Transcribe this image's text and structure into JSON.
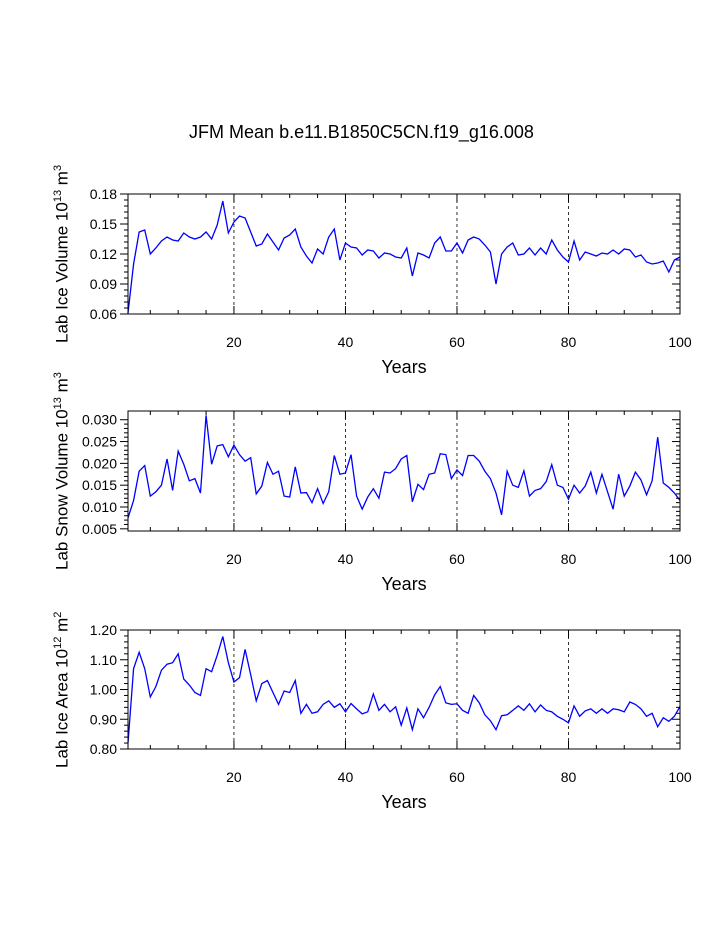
{
  "title": "JFM Mean b.e11.B1850C5CN.f19_g16.008",
  "chart_data": [
    {
      "type": "line",
      "title": "JFM Mean b.e11.B1850C5CN.f19_g16.008",
      "ylabel": {
        "text": "Lab Ice Volume 10",
        "exp": "13",
        "unit": " m",
        "unit_exp": "3"
      },
      "xlabel": "Years",
      "xlim": [
        1,
        100
      ],
      "ylim": [
        0.06,
        0.18
      ],
      "xticks": [
        20,
        40,
        60,
        80,
        100
      ],
      "yticks": [
        0.06,
        0.09,
        0.12,
        0.15,
        0.18
      ],
      "ytick_labels": [
        "0.06",
        "0.09",
        "0.12",
        "0.15",
        "0.18"
      ],
      "grid": "vertical dashed at x ticks",
      "color": "#0000ff",
      "values": [
        0.061,
        0.11,
        0.142,
        0.144,
        0.12,
        0.126,
        0.133,
        0.137,
        0.134,
        0.133,
        0.141,
        0.137,
        0.135,
        0.137,
        0.142,
        0.135,
        0.149,
        0.173,
        0.141,
        0.152,
        0.158,
        0.156,
        0.142,
        0.128,
        0.13,
        0.14,
        0.132,
        0.124,
        0.136,
        0.139,
        0.145,
        0.127,
        0.118,
        0.111,
        0.125,
        0.12,
        0.137,
        0.145,
        0.114,
        0.131,
        0.127,
        0.126,
        0.119,
        0.124,
        0.123,
        0.116,
        0.121,
        0.12,
        0.117,
        0.116,
        0.126,
        0.098,
        0.121,
        0.119,
        0.116,
        0.131,
        0.137,
        0.123,
        0.123,
        0.131,
        0.121,
        0.134,
        0.137,
        0.135,
        0.129,
        0.122,
        0.09,
        0.12,
        0.127,
        0.131,
        0.119,
        0.12,
        0.126,
        0.119,
        0.126,
        0.12,
        0.134,
        0.124,
        0.117,
        0.112,
        0.133,
        0.114,
        0.122,
        0.12,
        0.118,
        0.121,
        0.12,
        0.124,
        0.12,
        0.125,
        0.124,
        0.117,
        0.119,
        0.112,
        0.11,
        0.111,
        0.113,
        0.102,
        0.114,
        0.117
      ]
    },
    {
      "type": "line",
      "ylabel": {
        "text": "Lab Snow Volume 10",
        "exp": "13",
        "unit": " m",
        "unit_exp": "3"
      },
      "xlabel": "Years",
      "xlim": [
        1,
        100
      ],
      "ylim": [
        0.0045,
        0.032
      ],
      "xticks": [
        20,
        40,
        60,
        80,
        100
      ],
      "yticks": [
        0.005,
        0.01,
        0.015,
        0.02,
        0.025,
        0.03
      ],
      "ytick_labels": [
        "0.005",
        "0.010",
        "0.015",
        "0.020",
        "0.025",
        "0.030"
      ],
      "grid": "vertical dashed at x ticks",
      "color": "#0000ff",
      "values": [
        0.0075,
        0.0115,
        0.0182,
        0.0195,
        0.0125,
        0.0135,
        0.015,
        0.021,
        0.0138,
        0.0228,
        0.0198,
        0.016,
        0.0165,
        0.0132,
        0.031,
        0.0198,
        0.024,
        0.0243,
        0.0215,
        0.0242,
        0.022,
        0.0205,
        0.0213,
        0.013,
        0.0148,
        0.0202,
        0.0175,
        0.0182,
        0.0125,
        0.0123,
        0.0192,
        0.0132,
        0.0133,
        0.011,
        0.0142,
        0.0108,
        0.0135,
        0.0218,
        0.0175,
        0.0178,
        0.022,
        0.0125,
        0.0095,
        0.0123,
        0.0142,
        0.012,
        0.018,
        0.0178,
        0.0188,
        0.021,
        0.0218,
        0.0112,
        0.0152,
        0.014,
        0.0175,
        0.0178,
        0.0222,
        0.022,
        0.0165,
        0.0185,
        0.0172,
        0.0218,
        0.0218,
        0.0205,
        0.0182,
        0.0165,
        0.0132,
        0.0082,
        0.0182,
        0.015,
        0.0145,
        0.0183,
        0.0125,
        0.0138,
        0.0142,
        0.0158,
        0.0197,
        0.015,
        0.0145,
        0.0118,
        0.015,
        0.0132,
        0.0148,
        0.018,
        0.0132,
        0.0175,
        0.0135,
        0.0095,
        0.0175,
        0.0125,
        0.0148,
        0.018,
        0.0162,
        0.0128,
        0.016,
        0.026,
        0.0155,
        0.0145,
        0.0132,
        0.0115
      ]
    },
    {
      "type": "line",
      "ylabel": {
        "text": "Lab Ice Area 10",
        "exp": "12",
        "unit": " m",
        "unit_exp": "2"
      },
      "xlabel": "Years",
      "xlim": [
        1,
        100
      ],
      "ylim": [
        0.8,
        1.2
      ],
      "xticks": [
        20,
        40,
        60,
        80,
        100
      ],
      "yticks": [
        0.8,
        0.9,
        1.0,
        1.1,
        1.2
      ],
      "ytick_labels": [
        "0.80",
        "0.90",
        "1.00",
        "1.10",
        "1.20"
      ],
      "grid": "vertical dashed at x ticks",
      "color": "#0000ff",
      "values": [
        0.82,
        1.07,
        1.125,
        1.07,
        0.975,
        1.01,
        1.065,
        1.085,
        1.09,
        1.12,
        1.035,
        1.015,
        0.99,
        0.98,
        1.07,
        1.06,
        1.115,
        1.178,
        1.09,
        1.025,
        1.04,
        1.135,
        1.05,
        0.962,
        1.02,
        1.03,
        0.99,
        0.95,
        0.995,
        0.99,
        1.03,
        0.92,
        0.95,
        0.92,
        0.925,
        0.95,
        0.962,
        0.94,
        0.952,
        0.925,
        0.953,
        0.935,
        0.918,
        0.925,
        0.985,
        0.93,
        0.95,
        0.925,
        0.942,
        0.88,
        0.938,
        0.865,
        0.935,
        0.905,
        0.94,
        0.982,
        1.01,
        0.955,
        0.95,
        0.952,
        0.93,
        0.92,
        0.98,
        0.955,
        0.915,
        0.895,
        0.865,
        0.912,
        0.915,
        0.93,
        0.945,
        0.93,
        0.952,
        0.925,
        0.948,
        0.93,
        0.925,
        0.91,
        0.9,
        0.888,
        0.945,
        0.91,
        0.928,
        0.935,
        0.92,
        0.935,
        0.92,
        0.935,
        0.932,
        0.925,
        0.958,
        0.95,
        0.935,
        0.91,
        0.92,
        0.875,
        0.905,
        0.893,
        0.91,
        0.943
      ]
    }
  ]
}
